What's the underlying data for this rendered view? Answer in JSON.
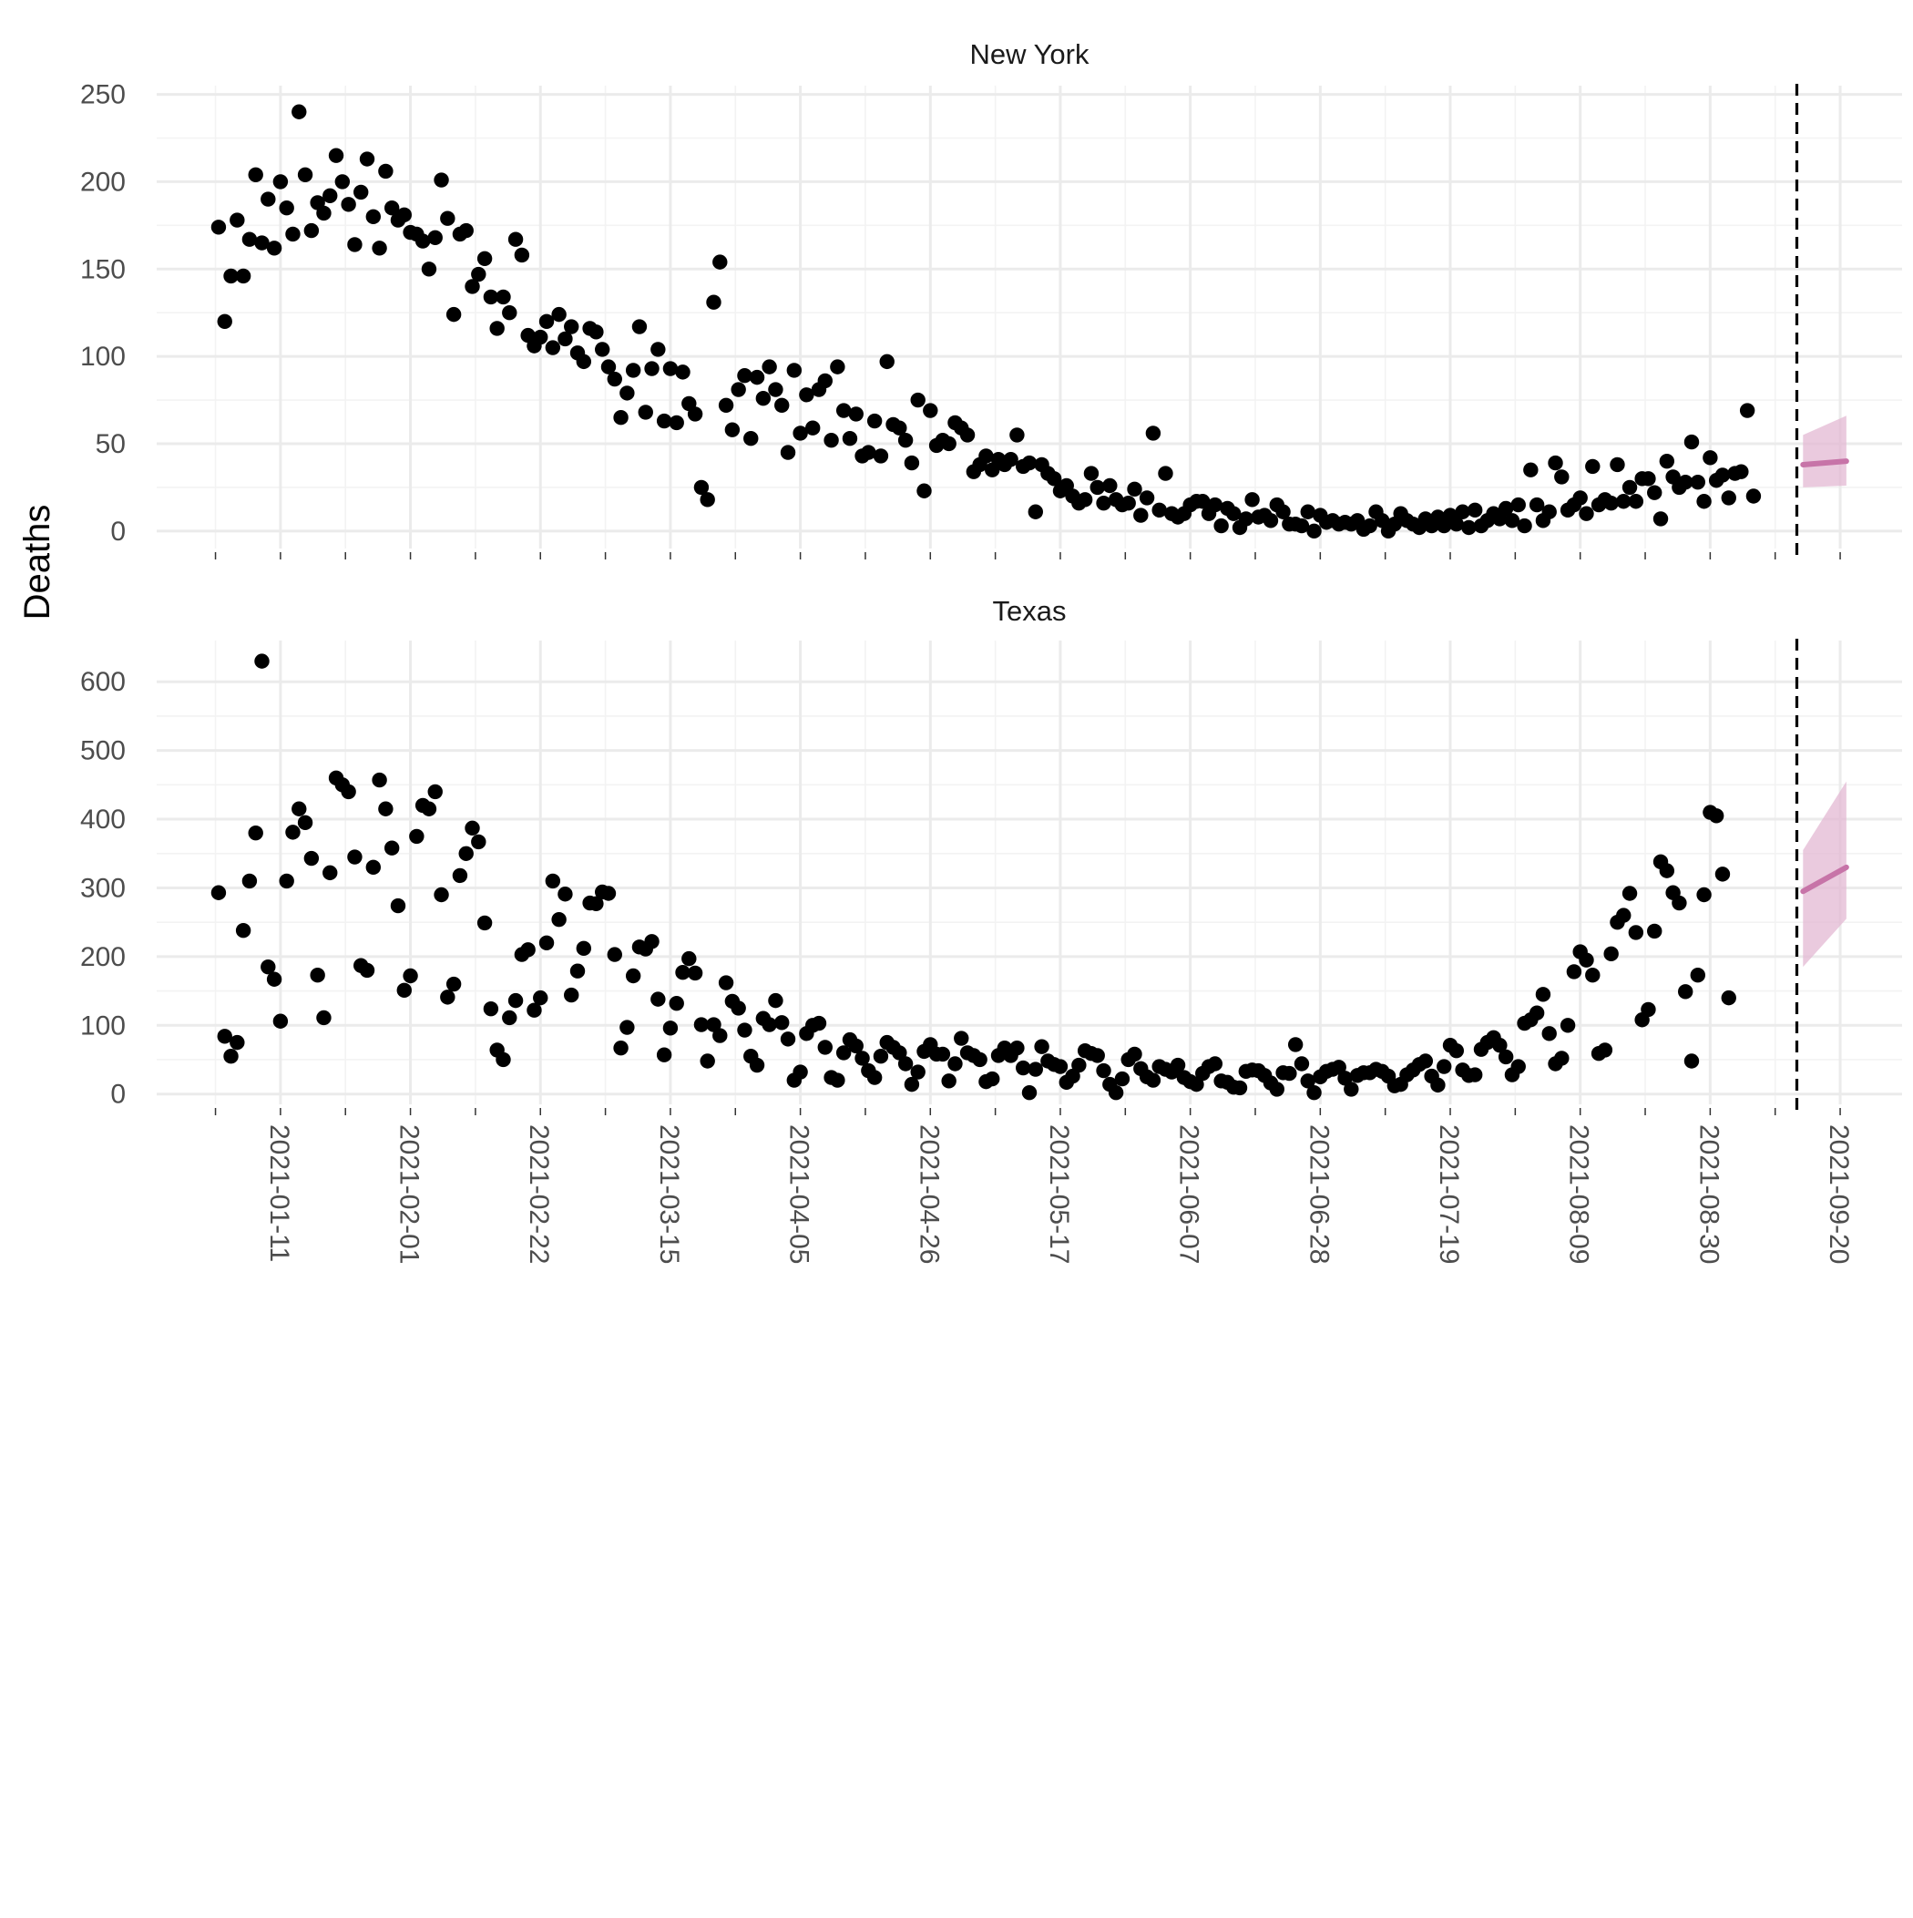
{
  "colors": {
    "points": "#000000",
    "forecast_line": "#c774a8",
    "forecast_band": "#e3b8d3",
    "vline": "#000000",
    "grid": "#ebebeb"
  },
  "chart_data": {
    "type": "scatter",
    "ylabel": "Deaths",
    "xlabel": "",
    "x_ticks": [
      "2021-01-11",
      "2021-02-01",
      "2021-02-22",
      "2021-03-15",
      "2021-04-05",
      "2021-04-26",
      "2021-05-17",
      "2021-06-07",
      "2021-06-28",
      "2021-07-19",
      "2021-08-09",
      "2021-08-30",
      "2021-09-20"
    ],
    "xlim": [
      "2020-12-22",
      "2021-09-30"
    ],
    "observed_start": "2021-01-01",
    "forecast_date": "2021-09-13",
    "grid": true,
    "vline_style": "dashed",
    "facets": [
      {
        "title": "New York",
        "ylim": [
          -10,
          255
        ],
        "y_ticks": [
          0,
          50,
          100,
          150,
          200,
          250
        ],
        "observed": [
          174,
          120,
          146,
          178,
          146,
          167,
          204,
          165,
          190,
          162,
          200,
          185,
          170,
          240,
          204,
          172,
          188,
          182,
          192,
          215,
          200,
          187,
          164,
          194,
          213,
          180,
          162,
          206,
          185,
          178,
          181,
          171,
          170,
          166,
          150,
          168,
          201,
          179,
          124,
          170,
          172,
          140,
          147,
          156,
          134,
          116,
          134,
          125,
          167,
          158,
          112,
          106,
          111,
          120,
          105,
          124,
          110,
          117,
          102,
          97,
          116,
          114,
          104,
          94,
          87,
          65,
          79,
          92,
          117,
          68,
          93,
          104,
          63,
          93,
          62,
          91,
          73,
          67,
          25,
          18,
          131,
          154,
          72,
          58,
          81,
          89,
          53,
          88,
          76,
          94,
          81,
          72,
          45,
          92,
          56,
          78,
          59,
          81,
          86,
          52,
          94,
          69,
          53,
          67,
          43,
          45,
          63,
          43,
          97,
          61,
          59,
          52,
          39,
          75,
          23,
          69,
          49,
          52,
          50,
          62,
          59,
          55,
          34,
          38,
          43,
          35,
          41,
          38,
          41,
          55,
          37,
          39,
          11,
          38,
          33,
          30,
          23,
          26,
          20,
          16,
          18,
          33,
          25,
          16,
          26,
          18,
          15,
          16,
          24,
          9,
          19,
          56,
          12,
          33,
          10,
          8,
          10,
          15,
          17,
          17,
          10,
          15,
          3,
          13,
          10,
          2,
          7,
          18,
          8,
          9,
          6,
          15,
          11,
          4,
          4,
          3,
          11,
          0,
          9,
          5,
          6,
          4,
          5,
          4,
          6,
          1,
          3,
          11,
          6,
          0,
          4,
          10,
          6,
          4,
          2,
          7,
          3,
          8,
          3,
          9,
          4,
          11,
          2,
          12,
          3,
          6,
          10,
          7,
          13,
          6,
          15,
          3,
          35,
          15,
          6,
          11,
          39,
          31,
          12,
          15,
          19,
          10,
          37,
          15,
          18,
          16,
          38,
          17,
          25,
          17,
          30,
          30,
          22,
          7,
          40,
          31,
          25,
          28,
          51,
          28,
          17,
          42,
          29,
          32,
          19,
          33,
          34,
          69,
          20
        ],
        "forecast": {
          "dates": [
            "2021-09-14",
            "2021-09-21"
          ],
          "median": [
            38,
            40
          ],
          "lower_90": [
            25,
            26
          ],
          "upper_90": [
            55,
            66
          ]
        }
      },
      {
        "title": "Texas",
        "ylim": [
          -15,
          660
        ],
        "y_ticks": [
          0,
          100,
          200,
          300,
          400,
          500,
          600
        ],
        "observed": [
          293,
          84,
          55,
          75,
          238,
          310,
          380,
          630,
          185,
          167,
          106,
          310,
          381,
          415,
          395,
          343,
          173,
          111,
          322,
          460,
          450,
          440,
          345,
          187,
          180,
          330,
          457,
          415,
          358,
          274,
          151,
          172,
          375,
          420,
          415,
          440,
          290,
          141,
          160,
          318,
          350,
          387,
          367,
          249,
          124,
          64,
          50,
          111,
          136,
          203,
          210,
          122,
          140,
          220,
          310,
          254,
          291,
          144,
          179,
          212,
          278,
          277,
          294,
          292,
          203,
          67,
          97,
          172,
          214,
          211,
          222,
          138,
          57,
          96,
          132,
          177,
          197,
          176,
          101,
          48,
          101,
          85,
          162,
          135,
          125,
          93,
          55,
          42,
          110,
          101,
          136,
          104,
          80,
          20,
          32,
          88,
          100,
          103,
          68,
          24,
          20,
          60,
          79,
          70,
          52,
          34,
          24,
          55,
          75,
          68,
          60,
          44,
          14,
          32,
          62,
          72,
          58,
          58,
          19,
          44,
          81,
          60,
          56,
          50,
          18,
          22,
          56,
          67,
          56,
          67,
          38,
          2,
          36,
          69,
          48,
          43,
          40,
          17,
          26,
          42,
          63,
          59,
          56,
          34,
          14,
          2,
          22,
          50,
          58,
          37,
          25,
          20,
          40,
          36,
          32,
          42,
          24,
          18,
          14,
          30,
          40,
          44,
          19,
          17,
          10,
          9,
          33,
          35,
          34,
          27,
          16,
          7,
          31,
          30,
          72,
          44,
          19,
          2,
          25,
          33,
          36,
          39,
          23,
          7,
          27,
          31,
          31,
          36,
          33,
          26,
          12,
          14,
          28,
          35,
          43,
          48,
          26,
          13,
          40,
          71,
          63,
          35,
          27,
          28,
          65,
          75,
          82,
          71,
          54,
          28,
          40,
          103,
          108,
          118,
          145,
          88,
          44,
          52,
          100,
          178,
          207,
          195,
          173,
          59,
          64,
          204,
          250,
          260,
          292,
          235,
          108,
          123,
          237,
          338,
          325,
          293,
          278,
          149,
          48,
          173,
          290,
          410,
          405,
          320,
          140
        ],
        "forecast": {
          "dates": [
            "2021-09-14",
            "2021-09-21"
          ],
          "median": [
            295,
            330
          ],
          "lower_90": [
            185,
            255
          ],
          "upper_90": [
            355,
            455
          ]
        }
      }
    ]
  }
}
